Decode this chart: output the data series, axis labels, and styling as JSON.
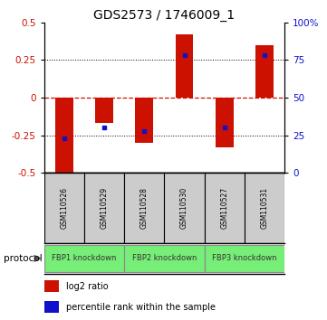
{
  "title": "GDS2573 / 1746009_1",
  "samples": [
    "GSM110526",
    "GSM110529",
    "GSM110528",
    "GSM110530",
    "GSM110527",
    "GSM110531"
  ],
  "log2_ratio": [
    -0.52,
    -0.17,
    -0.3,
    0.42,
    -0.33,
    0.35
  ],
  "percentile_rank": [
    -0.27,
    -0.2,
    -0.22,
    0.28,
    -0.2,
    0.28
  ],
  "ylim": [
    -0.5,
    0.5
  ],
  "yticks_left": [
    -0.5,
    -0.25,
    0.0,
    0.25,
    0.5
  ],
  "ytick_labels_left": [
    "-0.5",
    "-0.25",
    "0",
    "0.25",
    "0.5"
  ],
  "yticks_right": [
    0,
    25,
    50,
    75,
    100
  ],
  "ytick_labels_right": [
    "0",
    "25",
    "50",
    "75",
    "100%"
  ],
  "bar_color": "#cc1100",
  "marker_color": "#1111cc",
  "group_color": "#77ee77",
  "sample_box_color": "#cccccc",
  "groups": [
    {
      "label": "FBP1 knockdown",
      "start": 0,
      "end": 1
    },
    {
      "label": "FBP2 knockdown",
      "start": 2,
      "end": 3
    },
    {
      "label": "FBP3 knockdown",
      "start": 4,
      "end": 5
    }
  ],
  "protocol_label": "protocol",
  "legend_items": [
    {
      "label": "log2 ratio",
      "color": "#cc1100"
    },
    {
      "label": "percentile rank within the sample",
      "color": "#1111cc"
    }
  ],
  "title_fontsize": 10,
  "tick_fontsize": 7.5,
  "bar_width": 0.45
}
